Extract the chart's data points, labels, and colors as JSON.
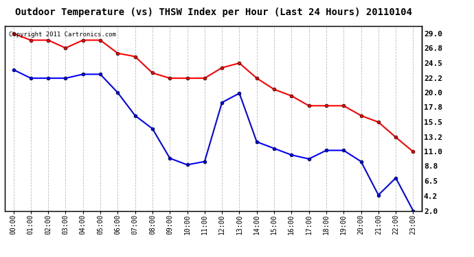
{
  "title": "Outdoor Temperature (vs) THSW Index per Hour (Last 24 Hours) 20110104",
  "copyright": "Copyright 2011 Cartronics.com",
  "hours": [
    "00:00",
    "01:00",
    "02:00",
    "03:00",
    "04:00",
    "05:00",
    "06:00",
    "07:00",
    "08:00",
    "09:00",
    "10:00",
    "11:00",
    "12:00",
    "13:00",
    "14:00",
    "15:00",
    "16:00",
    "17:00",
    "18:00",
    "19:00",
    "20:00",
    "21:00",
    "22:00",
    "23:00"
  ],
  "temp": [
    23.5,
    22.2,
    22.2,
    22.2,
    22.8,
    22.8,
    20.0,
    16.5,
    14.5,
    10.0,
    9.0,
    9.5,
    18.5,
    19.9,
    12.5,
    11.5,
    10.5,
    9.9,
    11.2,
    11.2,
    9.5,
    4.4,
    7.0,
    2.0
  ],
  "thsw": [
    29.0,
    28.0,
    28.0,
    26.8,
    28.0,
    28.0,
    26.0,
    25.5,
    23.0,
    22.2,
    22.2,
    22.2,
    23.8,
    24.5,
    22.2,
    20.5,
    19.5,
    18.0,
    18.0,
    18.0,
    16.5,
    15.5,
    13.2,
    11.0
  ],
  "temp_color": "#0000ff",
  "thsw_color": "#ff0000",
  "ymin": 2.0,
  "ymax": 30.2,
  "yticks_right": [
    2.0,
    4.2,
    6.5,
    8.8,
    11.0,
    13.2,
    15.5,
    17.8,
    20.0,
    22.2,
    24.5,
    26.8,
    29.0
  ],
  "background_color": "#ffffff",
  "grid_color": "#bbbbbb",
  "title_fontsize": 10,
  "copyright_fontsize": 6.5,
  "marker_size": 3.5,
  "line_width": 1.5
}
